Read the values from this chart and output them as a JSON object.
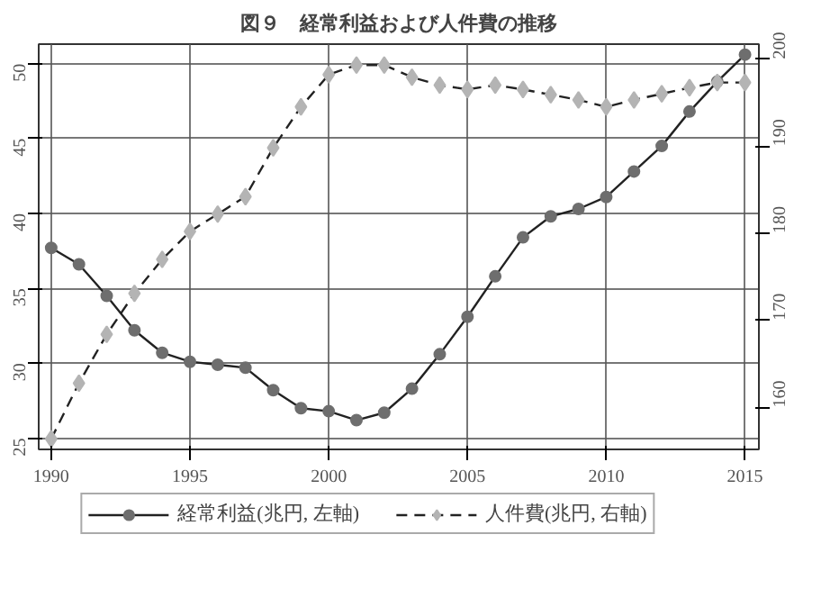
{
  "chart_data": {
    "type": "line",
    "title": "図９　経常利益および人件費の推移",
    "x": [
      1990,
      1991,
      1992,
      1993,
      1994,
      1995,
      1996,
      1997,
      1998,
      1999,
      2000,
      2001,
      2002,
      2003,
      2004,
      2005,
      2006,
      2007,
      2008,
      2009,
      2010,
      2011,
      2012,
      2013,
      2014,
      2015
    ],
    "series": [
      {
        "name": "経常利益(兆円, 左軸)",
        "color": "#6e6e6e",
        "marker": "circle",
        "line_style": "solid",
        "values": [
          37.7,
          36.6,
          34.5,
          32.2,
          30.7,
          30.1,
          29.9,
          29.7,
          28.2,
          27.0,
          26.8,
          26.2,
          26.7,
          28.3,
          30.6,
          33.1,
          35.8,
          38.4,
          39.8,
          40.3,
          41.1,
          42.8,
          44.5,
          46.8,
          48.8,
          50.6
        ]
      },
      {
        "name": "人件費(兆円, 右軸)",
        "color": "#b4b4b4",
        "marker": "diamond",
        "line_style": "dashed",
        "axis": "y2",
        "values": [
          156.4,
          162.8,
          168.4,
          173.1,
          177.0,
          180.2,
          182.2,
          184.2,
          189.8,
          194.5,
          198.2,
          199.3,
          199.3,
          197.9,
          197.0,
          196.5,
          197.0,
          196.5,
          195.9,
          195.3,
          194.5,
          195.3,
          196.0,
          196.7,
          197.3,
          197.3
        ]
      }
    ],
    "xlim": [
      1989.55,
      2015.5
    ],
    "xticks": [
      1990,
      1995,
      2000,
      2005,
      2010,
      2015
    ],
    "ylim": [
      24.25,
      51.3
    ],
    "yticks": [
      25,
      30,
      35,
      40,
      45,
      50
    ],
    "y2lim": [
      155.2,
      201.7
    ],
    "y2ticks": [
      160,
      170,
      180,
      190,
      200
    ],
    "grid": true,
    "legend": "bottom"
  }
}
